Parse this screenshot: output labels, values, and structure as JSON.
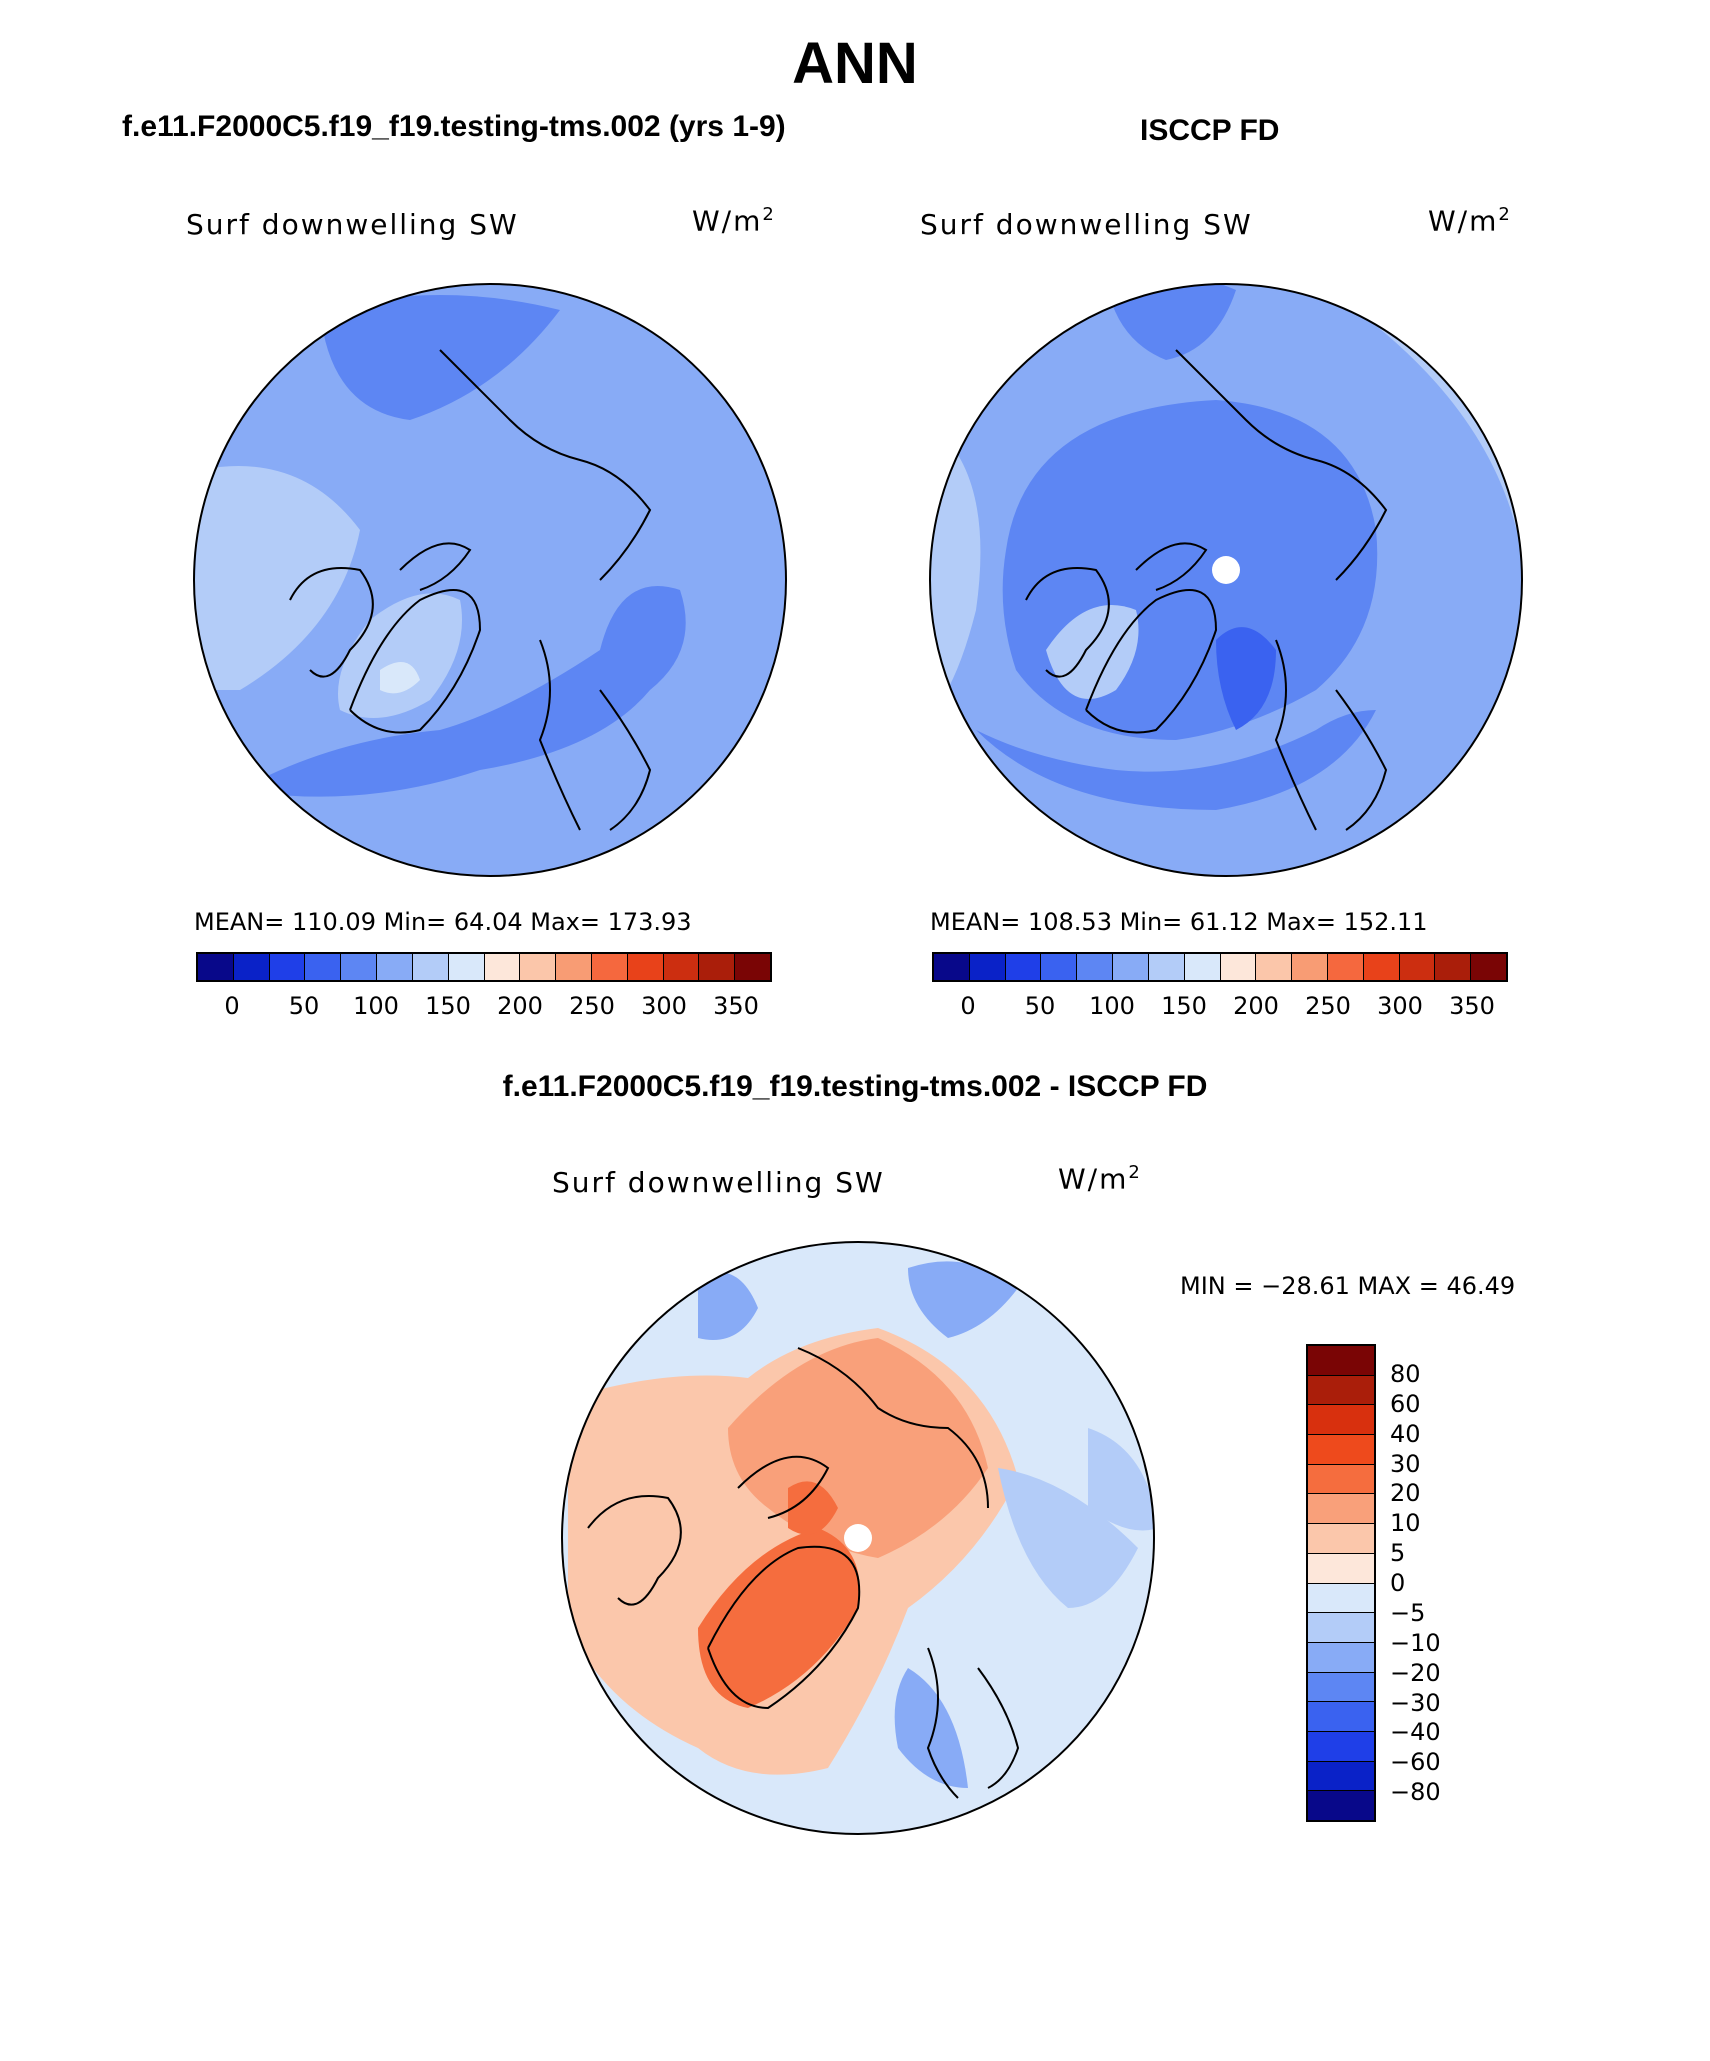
{
  "title": "ANN",
  "panel_left": {
    "header": "f.e11.F2000C5.f19_f19.testing-tms.002 (yrs 1-9)",
    "variable": "Surf downwelling SW",
    "units_base": "W/m",
    "units_exp": "2",
    "stats": "MEAN= 110.09   Min=   64.04   Max= 173.93"
  },
  "panel_right": {
    "header": "ISCCP FD",
    "variable": "Surf downwelling SW",
    "units_base": "W/m",
    "units_exp": "2",
    "stats": "MEAN= 108.53   Min=   61.12   Max= 152.11"
  },
  "panel_diff": {
    "header": "f.e11.F2000C5.f19_f19.testing-tms.002 - ISCCP FD",
    "variable": "Surf downwelling SW",
    "units_base": "W/m",
    "units_exp": "2",
    "minmax": "MIN = −28.61  MAX =   46.49"
  },
  "colorbar_abs": {
    "colors": [
      "#08088a",
      "#0a22c8",
      "#1f3fe8",
      "#3a62f0",
      "#5d86f3",
      "#88abf6",
      "#b3ccf8",
      "#d9e8fa",
      "#fde7da",
      "#fbc6aa",
      "#f89c74",
      "#f5683e",
      "#e8421a",
      "#cc2e10",
      "#aa1e0a",
      "#7a0505"
    ],
    "labels": [
      "0",
      "50",
      "100",
      "150",
      "200",
      "250",
      "300",
      "350"
    ]
  },
  "colorbar_diff": {
    "colors": [
      "#7a0505",
      "#aa1e0a",
      "#d8300e",
      "#ee4a1c",
      "#f56d3e",
      "#f9a07a",
      "#fbc7ab",
      "#fde7da",
      "#d9e8fa",
      "#b3ccf8",
      "#88abf6",
      "#5d86f3",
      "#3a62f0",
      "#1f3fe8",
      "#0a22c8",
      "#08088a"
    ],
    "labels": [
      "80",
      "60",
      "40",
      "30",
      "20",
      "10",
      "5",
      "0",
      "−5",
      "−10",
      "−20",
      "−30",
      "−40",
      "−60",
      "−80"
    ]
  }
}
